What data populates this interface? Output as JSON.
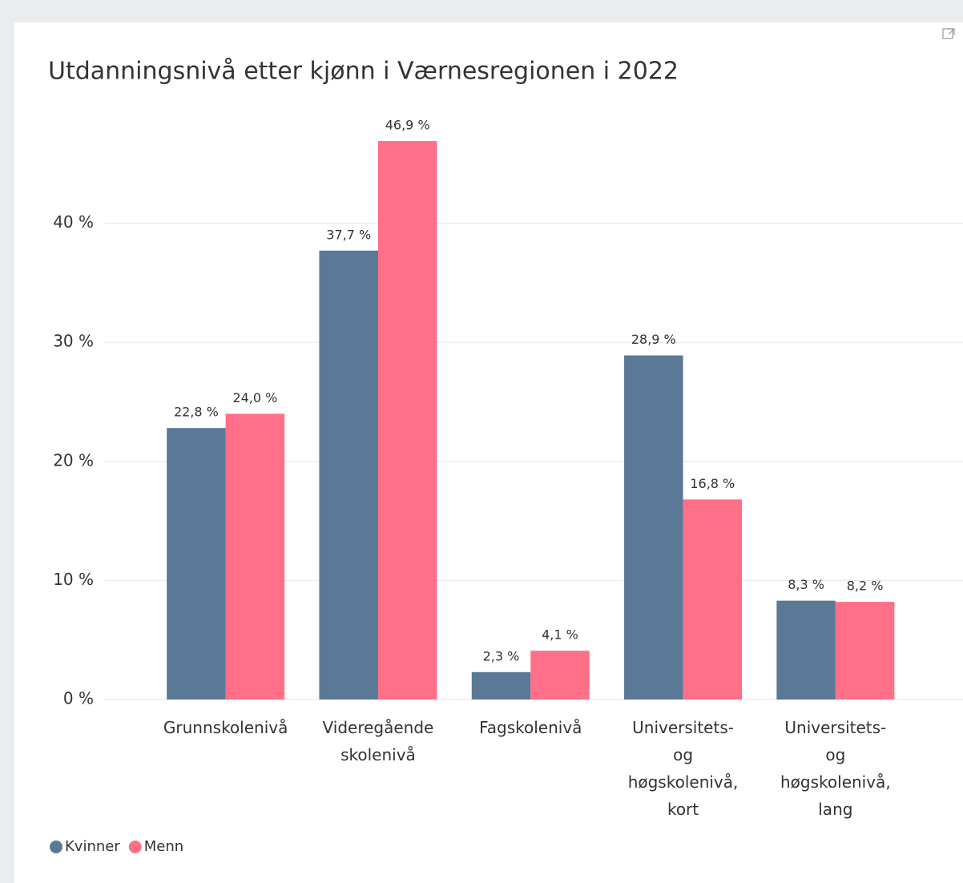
{
  "chart_data": {
    "type": "bar",
    "title": "Utdanningsnivå etter kjønn i Værnesregionen i 2022",
    "categories": [
      "Grunnskolenivå",
      "Videregående skolenivå",
      "Fagskolenivå",
      "Universitets- og høgskolenivå, kort",
      "Universitets- og høgskolenivå, lang"
    ],
    "series": [
      {
        "name": "Kvinner",
        "color": "#5b7897",
        "values": [
          22.8,
          37.7,
          2.3,
          28.9,
          8.3
        ],
        "value_labels": [
          "22,8 %",
          "37,7 %",
          "2,3 %",
          "28,9 %",
          "8,3 %"
        ]
      },
      {
        "name": "Menn",
        "color": "#ff6f87",
        "values": [
          24.0,
          46.9,
          4.1,
          16.8,
          8.2
        ],
        "value_labels": [
          "24,0 %",
          "46,9 %",
          "4,1 %",
          "16,8 %",
          "8,2 %"
        ]
      }
    ],
    "ylim": [
      0,
      50
    ],
    "yticks": [
      {
        "value": 0,
        "label": "0 %"
      },
      {
        "value": 10,
        "label": "10 %"
      },
      {
        "value": 20,
        "label": "20 %"
      },
      {
        "value": 30,
        "label": "30 %"
      },
      {
        "value": 40,
        "label": "40 %"
      }
    ],
    "grid": true,
    "legend": "bottom-left"
  }
}
